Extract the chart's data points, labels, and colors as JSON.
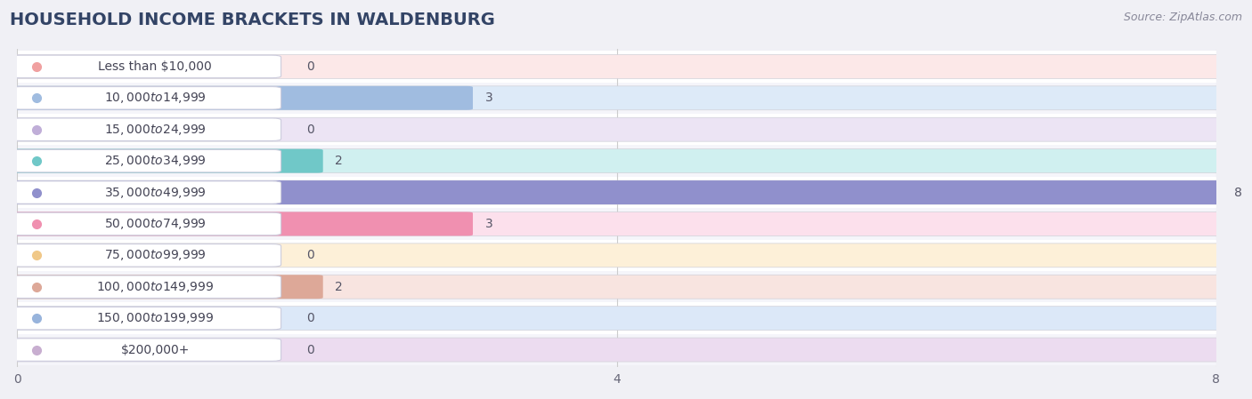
{
  "title": "HOUSEHOLD INCOME BRACKETS IN WALDENBURG",
  "source": "Source: ZipAtlas.com",
  "categories": [
    "Less than $10,000",
    "$10,000 to $14,999",
    "$15,000 to $24,999",
    "$25,000 to $34,999",
    "$35,000 to $49,999",
    "$50,000 to $74,999",
    "$75,000 to $99,999",
    "$100,000 to $149,999",
    "$150,000 to $199,999",
    "$200,000+"
  ],
  "values": [
    0,
    3,
    0,
    2,
    8,
    3,
    0,
    2,
    0,
    0
  ],
  "bar_colors": [
    "#f0a0a0",
    "#a0bce0",
    "#c0aed8",
    "#70c8c8",
    "#9090cc",
    "#f090b0",
    "#f0c888",
    "#dda898",
    "#98b4dc",
    "#c8aed0"
  ],
  "label_bg_colors": [
    "#fce8e8",
    "#ddeaf8",
    "#ece4f4",
    "#d0f0f0",
    "#dcdcf4",
    "#fce0ec",
    "#fdf0d8",
    "#f8e4e0",
    "#dce8f8",
    "#ecdcf0"
  ],
  "row_colors": [
    "#ffffff",
    "#f5f5fa"
  ],
  "xlim": [
    0,
    8
  ],
  "xticks": [
    0,
    4,
    8
  ],
  "background_color": "#f0f0f5",
  "title_fontsize": 14,
  "source_fontsize": 9,
  "label_fontsize": 10,
  "value_fontsize": 10
}
